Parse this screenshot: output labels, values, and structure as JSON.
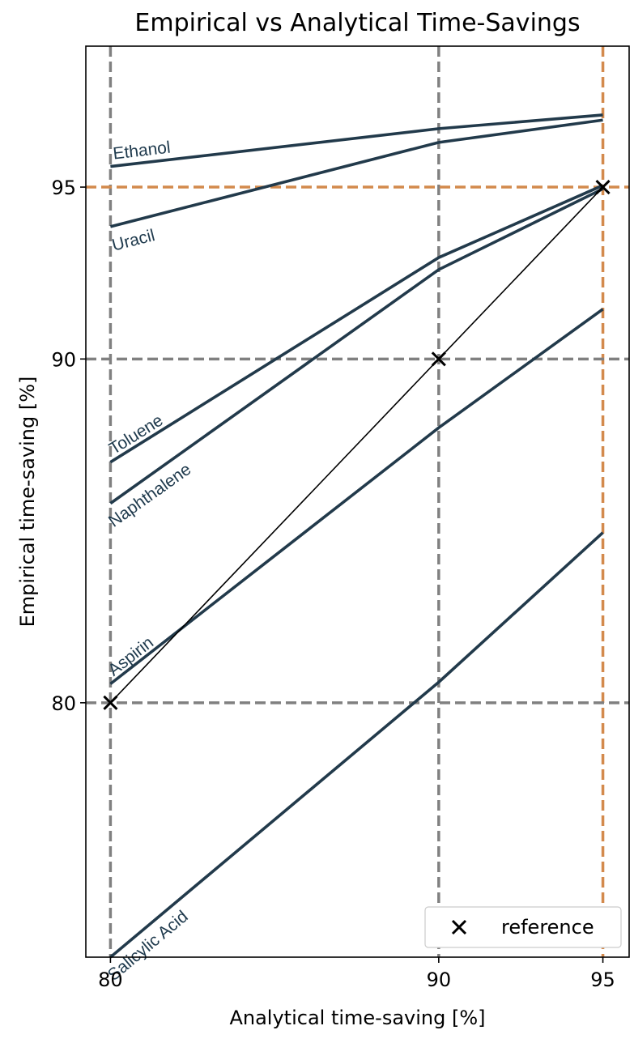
{
  "chart_data": {
    "type": "line",
    "title": "Empirical vs Analytical Time-Savings",
    "xlabel": "Analytical time-saving [%]",
    "ylabel": "Empirical time-saving [%]",
    "x": [
      80,
      90,
      95
    ],
    "xticks": [
      80,
      90,
      95
    ],
    "yticks": [
      80,
      90,
      95
    ],
    "xlim": [
      79.25,
      95.8
    ],
    "ylim": [
      72.6,
      99.1
    ],
    "grid": "dashed reference lines at ticks",
    "highlight_lines": {
      "x": 95,
      "y": 95,
      "color": "#d38a4d"
    },
    "grid_color": "#808080",
    "series_color": "#223a4b",
    "series": [
      {
        "name": "Ethanol",
        "values": [
          95.6,
          96.7,
          97.1
        ]
      },
      {
        "name": "Uracil",
        "values": [
          93.85,
          96.3,
          96.95
        ]
      },
      {
        "name": "Toluene",
        "values": [
          87.0,
          92.95,
          95.05
        ]
      },
      {
        "name": "Naphthalene",
        "values": [
          85.8,
          92.6,
          94.95
        ]
      },
      {
        "name": "Aspirin",
        "values": [
          80.55,
          88.0,
          91.45
        ]
      },
      {
        "name": "Salicylic Acid",
        "values": [
          72.6,
          80.6,
          84.95
        ]
      }
    ],
    "reference": {
      "name": "reference",
      "x": [
        80,
        90,
        95
      ],
      "y": [
        80,
        90,
        95
      ],
      "marker": "x",
      "color": "#000000"
    },
    "legend": {
      "position": "bottom-right",
      "entries": [
        "reference"
      ]
    }
  }
}
